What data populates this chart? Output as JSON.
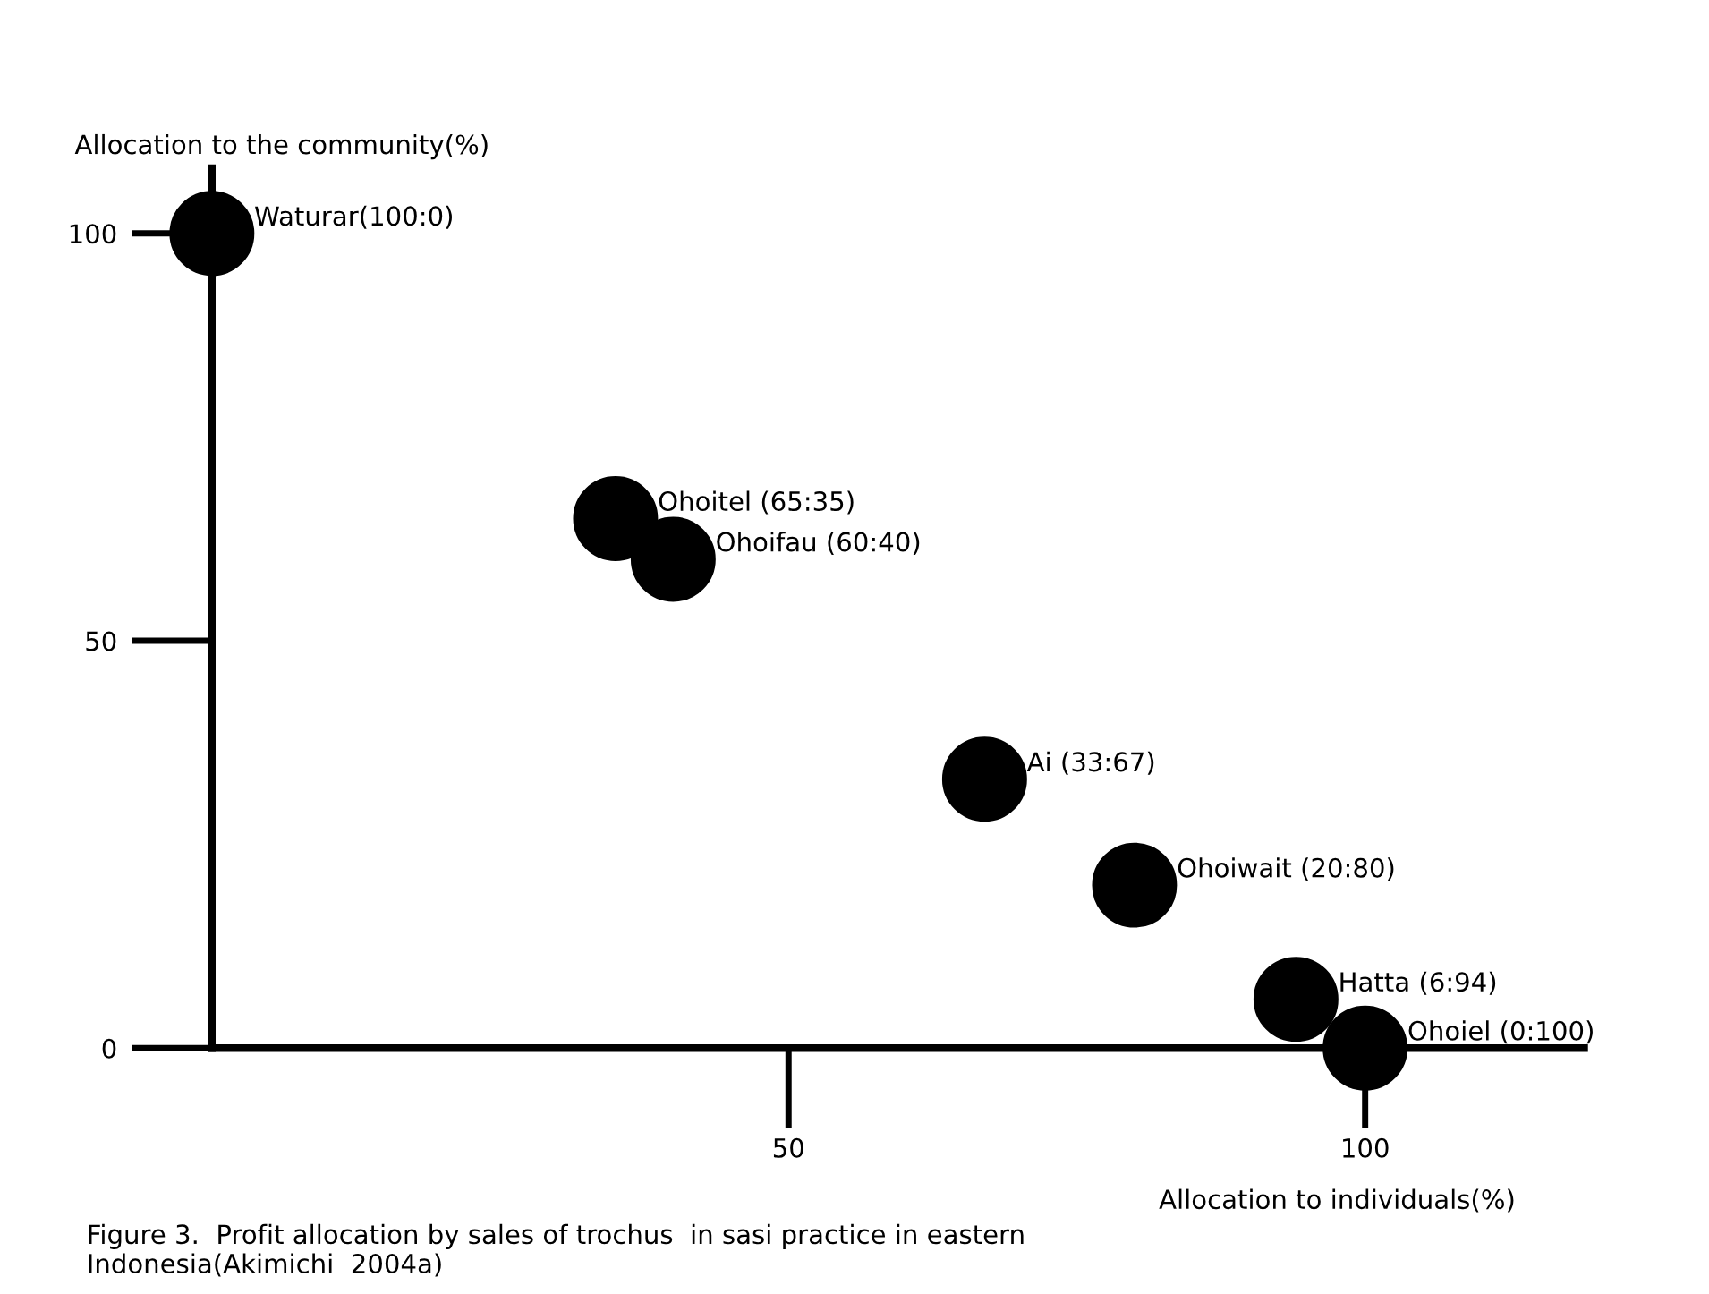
{
  "chart_data": {
    "type": "scatter",
    "xlabel": "Allocation to individuals(%)",
    "ylabel": "Allocation to the community(%)",
    "x": [
      0,
      35,
      40,
      67,
      80,
      94,
      100
    ],
    "values": [
      100,
      65,
      60,
      33,
      20,
      6,
      0
    ],
    "color": "#000000",
    "marker": "circle",
    "xlim": [
      0,
      119
    ],
    "ylim": [
      0,
      108
    ],
    "xticks": [
      50,
      100
    ],
    "yticks": [
      0,
      50,
      100
    ],
    "grid": false,
    "legend": false,
    "annotations": [
      {
        "text": "Waturar(100:0)",
        "x": 0,
        "y": 100
      },
      {
        "text": "Ohoitel (65:35)",
        "x": 35,
        "y": 65
      },
      {
        "text": "Ohoifau (60:40)",
        "x": 40,
        "y": 60
      },
      {
        "text": "Ai (33:67)",
        "x": 67,
        "y": 33
      },
      {
        "text": "Ohoiwait (20:80)",
        "x": 80,
        "y": 20
      },
      {
        "text": "Hatta (6:94)",
        "x": 94,
        "y": 6
      },
      {
        "text": "Ohoiel (0:100)",
        "x": 100,
        "y": 0
      },
      "Figure 3.  Profit allocation by sales of trochus  in sasi practice in eastern Indonesia(Akimichi  2004a)"
    ]
  }
}
